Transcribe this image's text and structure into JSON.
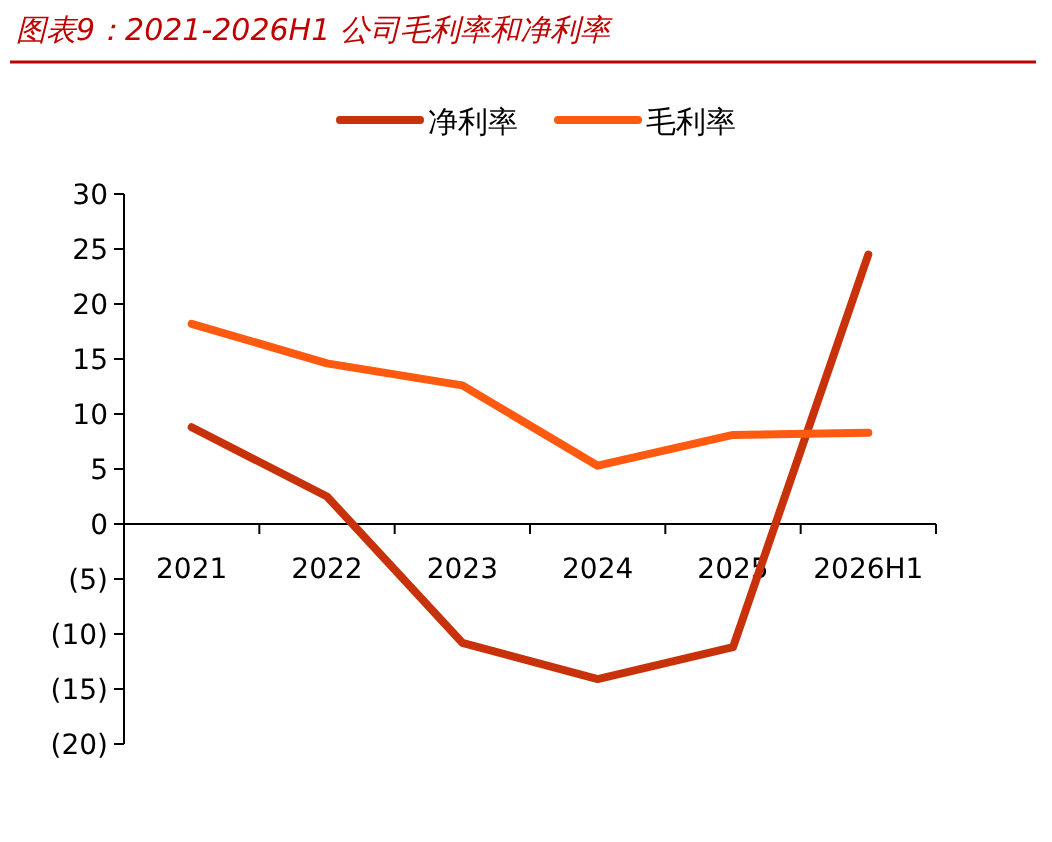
{
  "chart_data": {
    "type": "line",
    "title": "图表9：2021-2026H1 公司毛利率和净利率",
    "categories": [
      "2021",
      "2022",
      "2023",
      "2024",
      "2025",
      "2026H1"
    ],
    "series": [
      {
        "name": "净利率",
        "color": "#c8320a",
        "values": [
          8.8,
          2.5,
          -10.8,
          -14.1,
          -11.2,
          24.5
        ]
      },
      {
        "name": "毛利率",
        "color": "#ff5a0f",
        "values": [
          18.2,
          14.6,
          12.6,
          5.3,
          8.1,
          8.3
        ]
      }
    ],
    "ylim": [
      -20,
      30
    ],
    "yticks": [
      {
        "value": -20,
        "label": "(20)"
      },
      {
        "value": -15,
        "label": "(15)"
      },
      {
        "value": -10,
        "label": "(10)"
      },
      {
        "value": -5,
        "label": "(5)"
      },
      0,
      5,
      10,
      15,
      20,
      25,
      30
    ],
    "legend": "top",
    "grid": false,
    "marker": "none",
    "line_style": "solid"
  }
}
